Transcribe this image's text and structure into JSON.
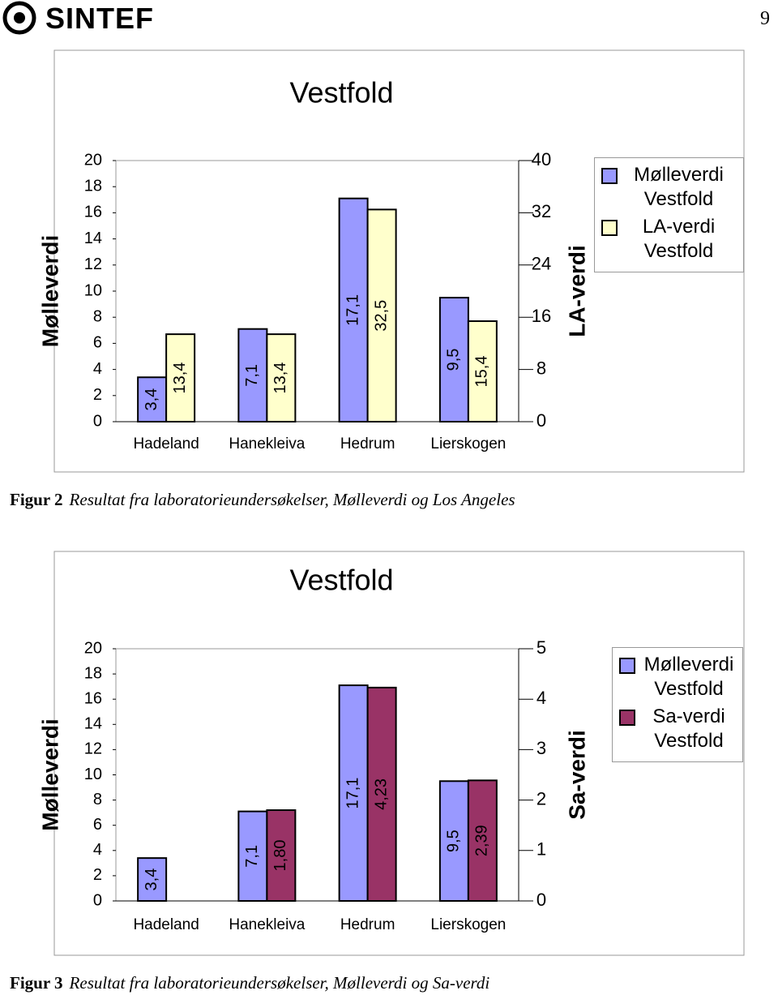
{
  "header": {
    "logo": "SINTEF",
    "page": "9"
  },
  "chart_data": [
    {
      "type": "bar",
      "title": "Vestfold",
      "y_label": "Mølleverdi",
      "y2_label": "LA-verdi",
      "categories": [
        "Hadeland",
        "Hanekleiva",
        "Hedrum",
        "Lierskogen"
      ],
      "series": [
        {
          "name": "Mølleverdi Vestfold",
          "color": "#9999ff",
          "values": [
            3.4,
            7.1,
            17.1,
            9.5
          ],
          "value_labels": [
            "3,4",
            "7,1",
            "17,1",
            "9,5"
          ]
        },
        {
          "name": "LA-verdi Vestfold",
          "color": "#ffffcc",
          "axis": "y2",
          "values": [
            13.4,
            13.4,
            32.5,
            15.4
          ],
          "value_labels": [
            "13,4",
            "13,4",
            "32,5",
            "15,4"
          ]
        }
      ],
      "ylim": [
        0,
        20
      ],
      "yticks": [
        0,
        2,
        4,
        6,
        8,
        10,
        12,
        14,
        16,
        18,
        20
      ],
      "y2lim": [
        0,
        40
      ],
      "y2ticks": [
        0,
        8,
        16,
        24,
        32,
        40
      ],
      "grid": false,
      "legend": "right"
    },
    {
      "type": "bar",
      "title": "Vestfold",
      "y_label": "Mølleverdi",
      "y2_label": "Sa-verdi",
      "categories": [
        "Hadeland",
        "Hanekleiva",
        "Hedrum",
        "Lierskogen"
      ],
      "series": [
        {
          "name": "Mølleverdi Vestfold",
          "color": "#9999ff",
          "values": [
            3.4,
            7.1,
            17.1,
            9.5
          ],
          "value_labels": [
            "3,4",
            "7,1",
            "17,1",
            "9,5"
          ]
        },
        {
          "name": "Sa-verdi Vestfold",
          "color": "#993366",
          "axis": "y2",
          "values": [
            null,
            1.8,
            4.23,
            2.39
          ],
          "value_labels": [
            null,
            "1,80",
            "4,23",
            "2,39"
          ]
        }
      ],
      "ylim": [
        0,
        20
      ],
      "yticks": [
        0,
        2,
        4,
        6,
        8,
        10,
        12,
        14,
        16,
        18,
        20
      ],
      "y2lim": [
        0,
        5
      ],
      "y2ticks": [
        0,
        1,
        2,
        3,
        4,
        5
      ],
      "grid": false,
      "legend": "right"
    }
  ],
  "captions": [
    {
      "label": "Figur 2",
      "text": "Resultat fra laboratorieundersøkelser, Mølleverdi og Los Angeles"
    },
    {
      "label": "Figur 3",
      "text": "Resultat fra laboratorieundersøkelser, Mølleverdi og Sa-verdi"
    }
  ]
}
